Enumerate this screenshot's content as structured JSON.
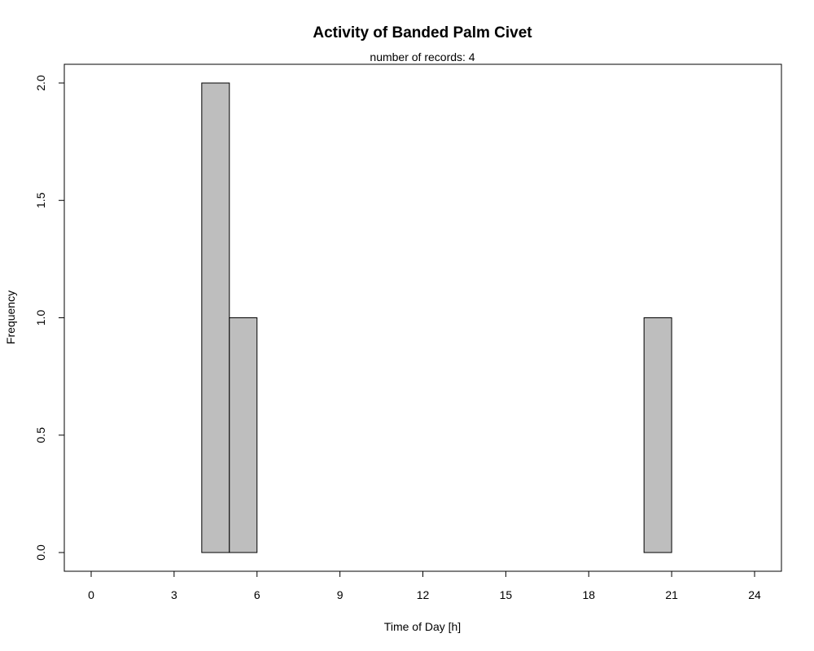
{
  "chart_data": {
    "type": "bar",
    "title": "Activity of Banded Palm Civet",
    "subtitle": "number of records: 4",
    "xlabel": "Time of Day [h]",
    "ylabel": "Frequency",
    "xlim": [
      0,
      24
    ],
    "ylim": [
      0,
      2
    ],
    "xticks": [
      0,
      3,
      6,
      9,
      12,
      15,
      18,
      21,
      24
    ],
    "xtick_labels": [
      "0",
      "3",
      "6",
      "9",
      "12",
      "15",
      "18",
      "21",
      "24"
    ],
    "yticks": [
      0,
      0.5,
      1,
      1.5,
      2
    ],
    "ytick_labels": [
      "0.0",
      "0.5",
      "1.0",
      "1.5",
      "2.0"
    ],
    "bin_width": 1,
    "bins": [
      {
        "start": 0,
        "end": 1,
        "count": 0
      },
      {
        "start": 1,
        "end": 2,
        "count": 0
      },
      {
        "start": 2,
        "end": 3,
        "count": 0
      },
      {
        "start": 3,
        "end": 4,
        "count": 0
      },
      {
        "start": 4,
        "end": 5,
        "count": 2
      },
      {
        "start": 5,
        "end": 6,
        "count": 1
      },
      {
        "start": 6,
        "end": 7,
        "count": 0
      },
      {
        "start": 7,
        "end": 8,
        "count": 0
      },
      {
        "start": 8,
        "end": 9,
        "count": 0
      },
      {
        "start": 9,
        "end": 10,
        "count": 0
      },
      {
        "start": 10,
        "end": 11,
        "count": 0
      },
      {
        "start": 11,
        "end": 12,
        "count": 0
      },
      {
        "start": 12,
        "end": 13,
        "count": 0
      },
      {
        "start": 13,
        "end": 14,
        "count": 0
      },
      {
        "start": 14,
        "end": 15,
        "count": 0
      },
      {
        "start": 15,
        "end": 16,
        "count": 0
      },
      {
        "start": 16,
        "end": 17,
        "count": 0
      },
      {
        "start": 17,
        "end": 18,
        "count": 0
      },
      {
        "start": 18,
        "end": 19,
        "count": 0
      },
      {
        "start": 19,
        "end": 20,
        "count": 0
      },
      {
        "start": 20,
        "end": 21,
        "count": 1
      },
      {
        "start": 21,
        "end": 22,
        "count": 0
      },
      {
        "start": 22,
        "end": 23,
        "count": 0
      },
      {
        "start": 23,
        "end": 24,
        "count": 0
      }
    ],
    "bar_color": "#bebebe",
    "grid": false,
    "legend": "none"
  }
}
